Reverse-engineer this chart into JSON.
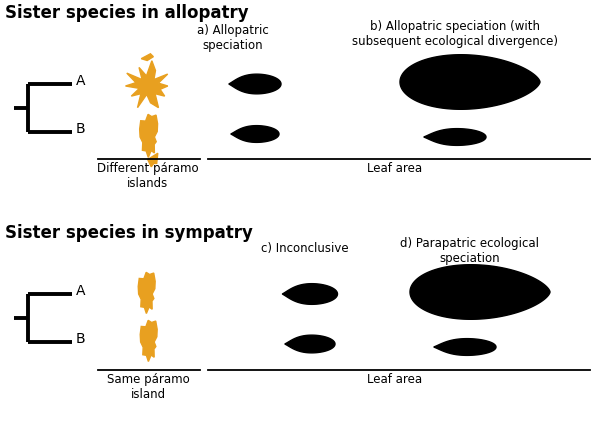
{
  "title_allopatry": "Sister species in allopatry",
  "title_sympatry": "Sister species in sympatry",
  "label_a": "a) Allopatric\nspeciation",
  "label_b": "b) Allopatric speciation (with\nsubsequent ecological divergence)",
  "label_c": "c) Inconclusive",
  "label_d": "d) Parapatric ecological\nspeciation",
  "diff_paramo": "Different páramo\nislands",
  "same_paramo": "Same páramo\nisland",
  "leaf_area": "Leaf area",
  "orange_color": "#E8A020",
  "black_color": "#000000",
  "bg_color": "#FFFFFF",
  "label_A": "A",
  "label_B": "B"
}
